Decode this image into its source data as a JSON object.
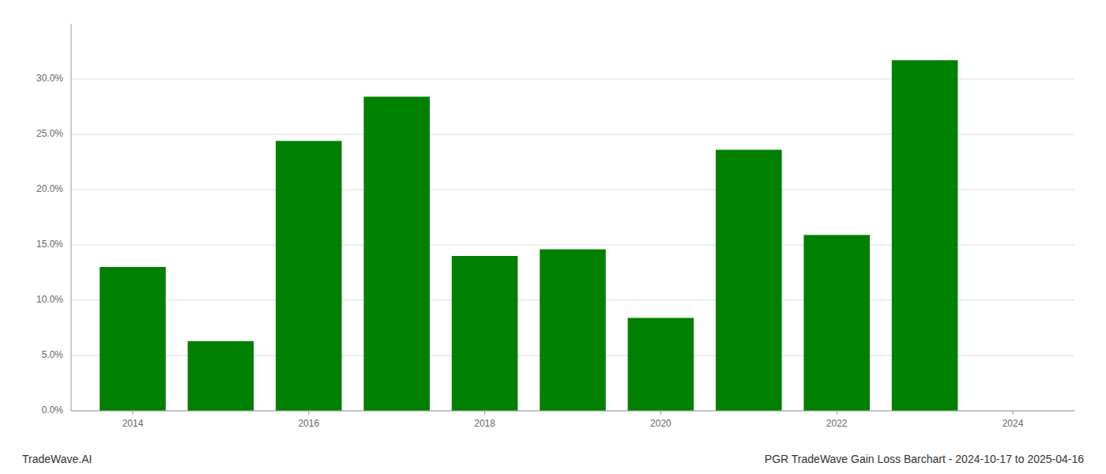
{
  "chart_data": {
    "type": "bar",
    "title": "PGR TradeWave Gain Loss Barchart - 2024-10-17 to 2025-04-16",
    "annotations": [
      "TradeWave.AI"
    ],
    "x": [
      2014,
      2015,
      2016,
      2017,
      2018,
      2019,
      2020,
      2021,
      2022,
      2023
    ],
    "values": [
      0.13,
      0.063,
      0.244,
      0.284,
      0.14,
      0.146,
      0.084,
      0.236,
      0.159,
      0.317
    ],
    "color": "#008000",
    "xlim": [
      2013.3,
      2024.7
    ],
    "xticks": [
      2014,
      2016,
      2018,
      2020,
      2022,
      2024
    ],
    "ylim": [
      0,
      0.35
    ],
    "yticks": [
      {
        "value": 0.0,
        "label": "0.0%"
      },
      {
        "value": 0.05,
        "label": "5.0%"
      },
      {
        "value": 0.1,
        "label": "10.0%"
      },
      {
        "value": 0.15,
        "label": "15.0%"
      },
      {
        "value": 0.2,
        "label": "20.0%"
      },
      {
        "value": 0.25,
        "label": "25.0%"
      },
      {
        "value": 0.3,
        "label": "30.0%"
      }
    ],
    "grid": true
  }
}
